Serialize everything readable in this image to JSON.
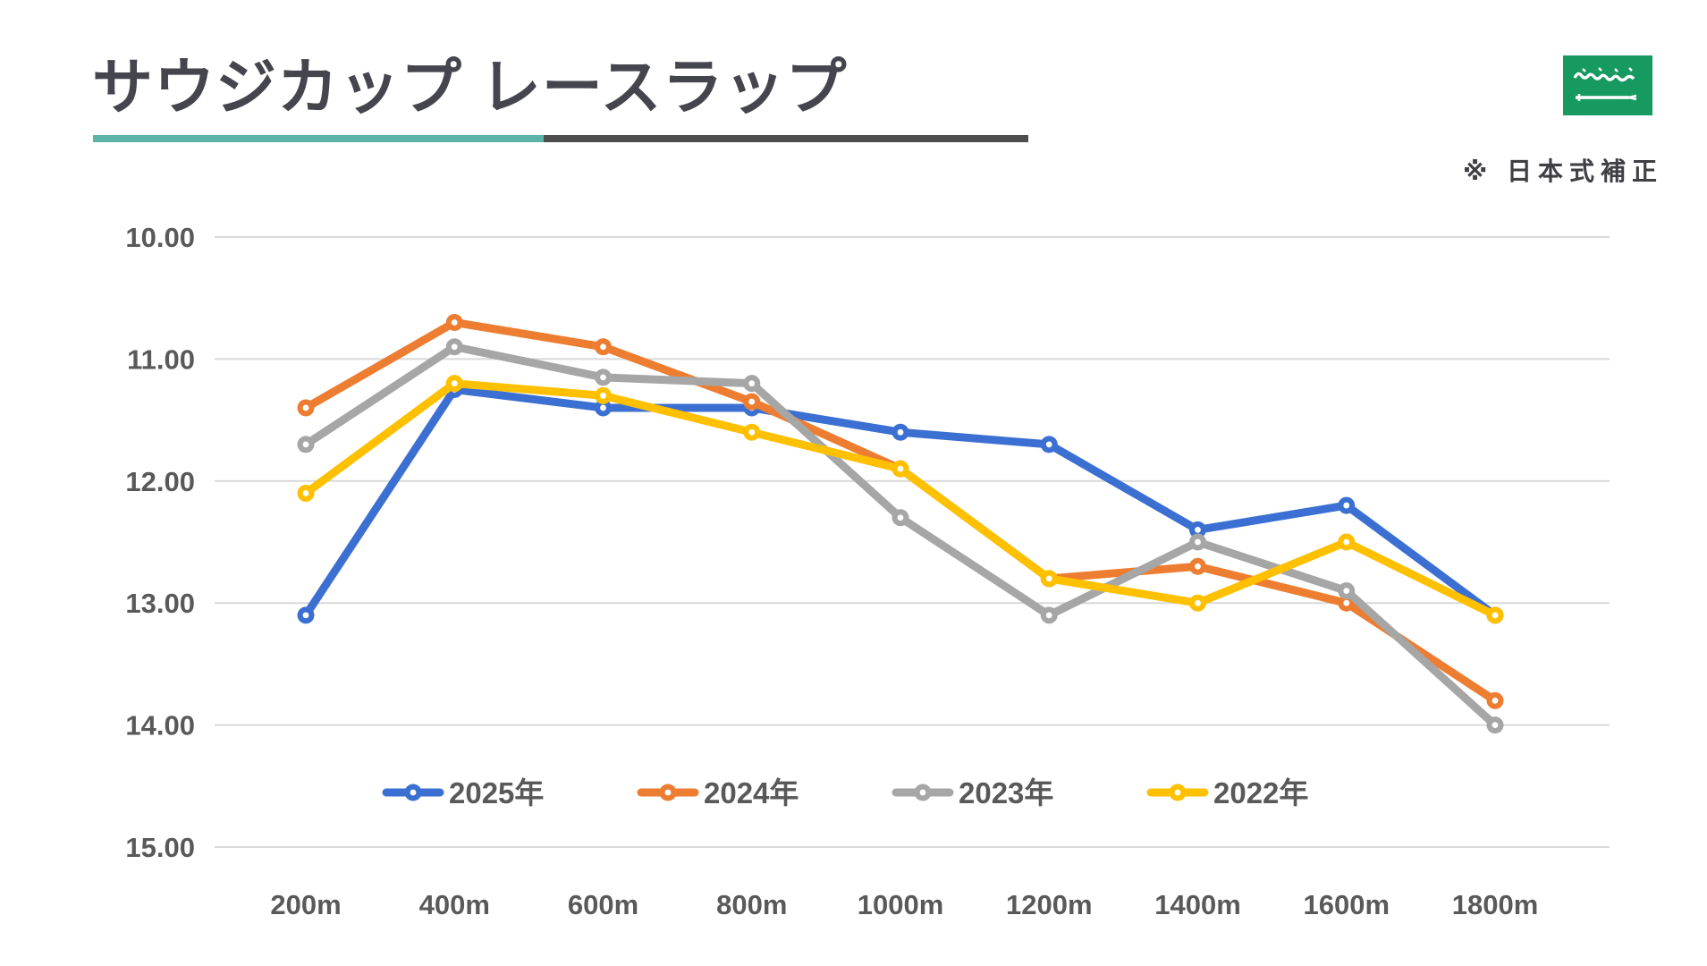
{
  "header": {
    "title": "サウジカップ レースラップ",
    "note": "※ 日本式補正",
    "flag": "saudi-arabia-flag",
    "accent_teal": "#5eb3a8",
    "accent_dark": "#4d4d4d",
    "flag_green": "#179a60"
  },
  "chart_data": {
    "type": "line",
    "title": "サウジカップ レースラップ",
    "categories": [
      "200m",
      "400m",
      "600m",
      "800m",
      "1000m",
      "1200m",
      "1400m",
      "1600m",
      "1800m"
    ],
    "series": [
      {
        "name": "2025年",
        "color": "#3b70d2",
        "values": [
          13.1,
          11.25,
          11.4,
          11.4,
          11.6,
          11.7,
          12.4,
          12.2,
          13.1
        ]
      },
      {
        "name": "2024年",
        "color": "#ed7d31",
        "values": [
          11.4,
          10.7,
          10.9,
          11.35,
          11.9,
          12.8,
          12.7,
          13.0,
          13.8
        ]
      },
      {
        "name": "2023年",
        "color": "#a6a6a6",
        "values": [
          11.7,
          10.9,
          11.15,
          11.2,
          12.3,
          13.1,
          12.5,
          12.9,
          14.0
        ]
      },
      {
        "name": "2022年",
        "color": "#ffc000",
        "values": [
          12.1,
          11.2,
          11.3,
          11.6,
          11.9,
          12.8,
          13.0,
          12.5,
          13.1
        ]
      }
    ],
    "xlabel": "",
    "ylabel": "",
    "ylim": [
      10,
      15
    ],
    "y_ticks": [
      "10.00",
      "11.00",
      "12.00",
      "13.00",
      "14.00",
      "15.00"
    ],
    "y_axis_reversed": true,
    "grid": true,
    "gridline_color": "#d9d9d9",
    "tick_color": "#595959",
    "legend_position": "bottom-inside",
    "marker": "circle-donut"
  }
}
